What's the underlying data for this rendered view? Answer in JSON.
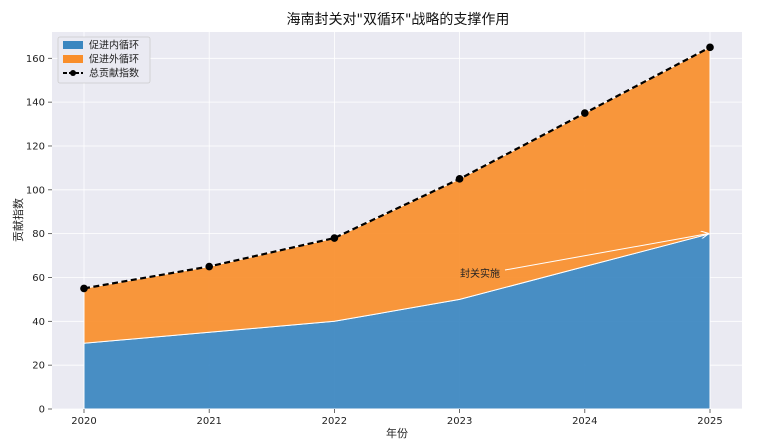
{
  "chart_data": {
    "type": "area",
    "title": "海南封关对\"双循环\"战略的支撑作用",
    "xlabel": "年份",
    "ylabel": "贡献指数",
    "x": [
      "2020",
      "2021",
      "2022",
      "2023",
      "2024",
      "2025"
    ],
    "ylim": [
      0,
      172
    ],
    "yticks": [
      0,
      20,
      40,
      60,
      80,
      100,
      120,
      140,
      160
    ],
    "stacked": true,
    "series": [
      {
        "name": "促进内循环",
        "type": "area",
        "values": [
          30,
          35,
          40,
          50,
          65,
          80
        ],
        "color": "#3a86c0"
      },
      {
        "name": "促进外循环",
        "type": "area",
        "values": [
          25,
          30,
          38,
          55,
          70,
          85
        ],
        "color": "#f98e2b"
      },
      {
        "name": "总贡献指数",
        "type": "line",
        "values": [
          55,
          65,
          78,
          105,
          135,
          165
        ],
        "color": "#000000",
        "style": "dashed",
        "marker": "circle"
      }
    ],
    "annotations": [
      {
        "text": "封关实施",
        "point": [
          "2025",
          80
        ]
      }
    ],
    "grid": true,
    "background": "#eaeaf2",
    "legend": "top-left"
  }
}
